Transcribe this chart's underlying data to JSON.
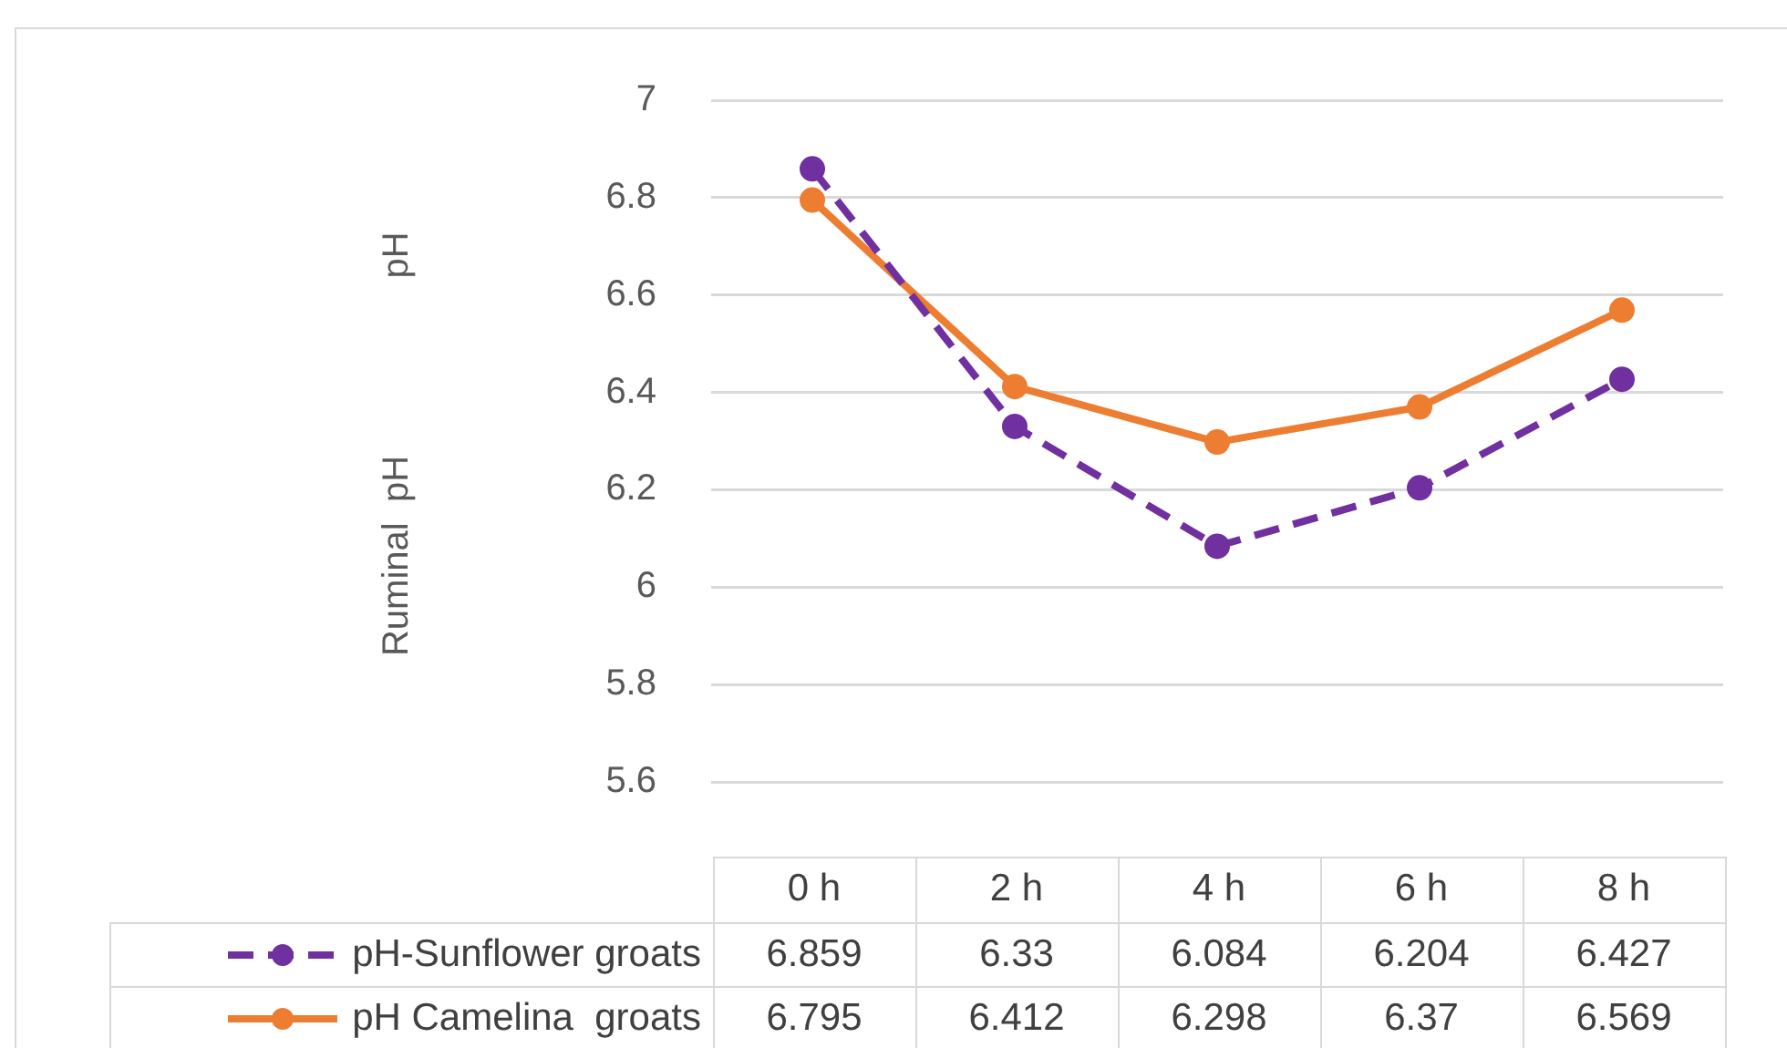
{
  "chart_data": {
    "type": "line",
    "annotations": [
      "pH",
      "Ruminal  pH"
    ],
    "categories": [
      "0 h",
      "2 h",
      "4 h",
      "6 h",
      "8 h"
    ],
    "series": [
      {
        "name": "pH-Sunflower groats",
        "color": "#7030a0",
        "line_style": "dashed",
        "values": [
          6.859,
          6.33,
          6.084,
          6.204,
          6.427
        ]
      },
      {
        "name": "pH Camelina  groats",
        "color": "#ed7d31",
        "line_style": "solid",
        "values": [
          6.795,
          6.412,
          6.298,
          6.37,
          6.569
        ]
      }
    ],
    "ylim": [
      5.6,
      7
    ],
    "yticks": [
      5.6,
      5.8,
      6,
      6.2,
      6.4,
      6.6,
      6.8,
      7
    ],
    "grid": "y",
    "marker": "circle",
    "legend": "bottom",
    "data_labels": true
  }
}
